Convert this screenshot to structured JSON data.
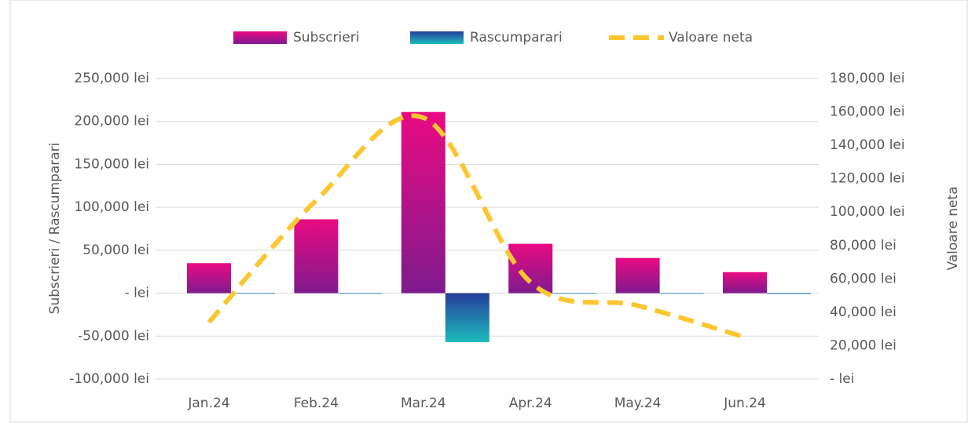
{
  "chart_data": {
    "type": "bar-line",
    "categories": [
      "Jan.24",
      "Feb.24",
      "Mar.24",
      "Apr.24",
      "May.24",
      "Jun.24"
    ],
    "series": [
      {
        "name": "Subscrieri",
        "type": "bar",
        "colors": [
          "#ea0a82",
          "#7e1b8e"
        ],
        "values": [
          35000,
          86000,
          211000,
          57500,
          41000,
          24500
        ]
      },
      {
        "name": "Rascumparari",
        "type": "bar",
        "colors": [
          "#273d9c",
          "#1cbcbc"
        ],
        "values": [
          0,
          0,
          -57000,
          0,
          0,
          -1000
        ]
      },
      {
        "name": "Valoare neta",
        "type": "line",
        "axis": "y2",
        "color": "#fcc630",
        "dashed": true,
        "values": [
          34000,
          107000,
          156500,
          58000,
          44000,
          25000
        ]
      }
    ],
    "y_label": "Subscrieri / Rascumparari",
    "y2_label": "Valoare neta",
    "ylim": [
      -100000,
      250000
    ],
    "yticks": [
      {
        "value": -100000,
        "label": "-100,000 lei"
      },
      {
        "value": -50000,
        "label": "-50,000 lei"
      },
      {
        "value": 0,
        "label": "- lei"
      },
      {
        "value": 50000,
        "label": "50,000 lei"
      },
      {
        "value": 100000,
        "label": "100,000 lei"
      },
      {
        "value": 150000,
        "label": "150,000 lei"
      },
      {
        "value": 200000,
        "label": "200,000 lei"
      },
      {
        "value": 250000,
        "label": "250,000 lei"
      }
    ],
    "y2lim": [
      0,
      180000
    ],
    "y2ticks": [
      {
        "value": 0,
        "label": "- lei"
      },
      {
        "value": 20000,
        "label": "20,000 lei"
      },
      {
        "value": 40000,
        "label": "40,000 lei"
      },
      {
        "value": 60000,
        "label": "60,000 lei"
      },
      {
        "value": 80000,
        "label": "80,000 lei"
      },
      {
        "value": 100000,
        "label": "100,000 lei"
      },
      {
        "value": 120000,
        "label": "120,000 lei"
      },
      {
        "value": 140000,
        "label": "140,000 lei"
      },
      {
        "value": 160000,
        "label": "160,000 lei"
      },
      {
        "value": 180000,
        "label": "180,000 lei"
      }
    ],
    "grid": true,
    "legend": "top"
  }
}
